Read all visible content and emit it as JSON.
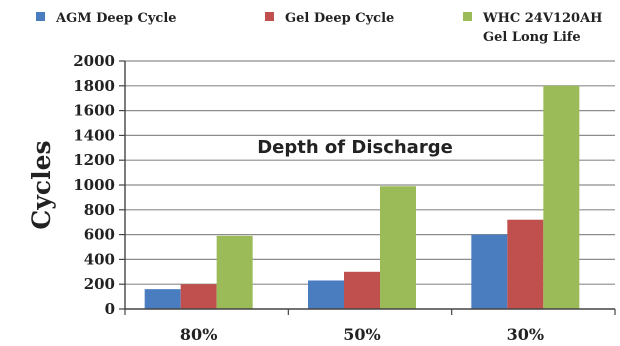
{
  "chart_data": {
    "type": "bar",
    "categories": [
      "80%",
      "50%",
      "30%"
    ],
    "series": [
      {
        "name": "AGM Deep Cycle",
        "values": [
          160,
          230,
          600
        ],
        "color": "#4a7cc0"
      },
      {
        "name": "Gel Deep Cycle",
        "values": [
          200,
          300,
          720
        ],
        "color": "#c0504d"
      },
      {
        "name": "WHC 24V120AH Gel Long Life",
        "name_lines": [
          "WHC 24V120AH",
          "Gel Long Life"
        ],
        "values": [
          590,
          990,
          1800
        ],
        "color": "#9bbb59"
      }
    ],
    "ylabel": "Cycles",
    "annotation": "Depth of Discharge",
    "ylim": [
      0,
      2000
    ],
    "yticks": [
      0,
      200,
      400,
      600,
      800,
      1000,
      1200,
      1400,
      1600,
      1800,
      2000
    ],
    "grid": true,
    "legend_position": "top"
  }
}
